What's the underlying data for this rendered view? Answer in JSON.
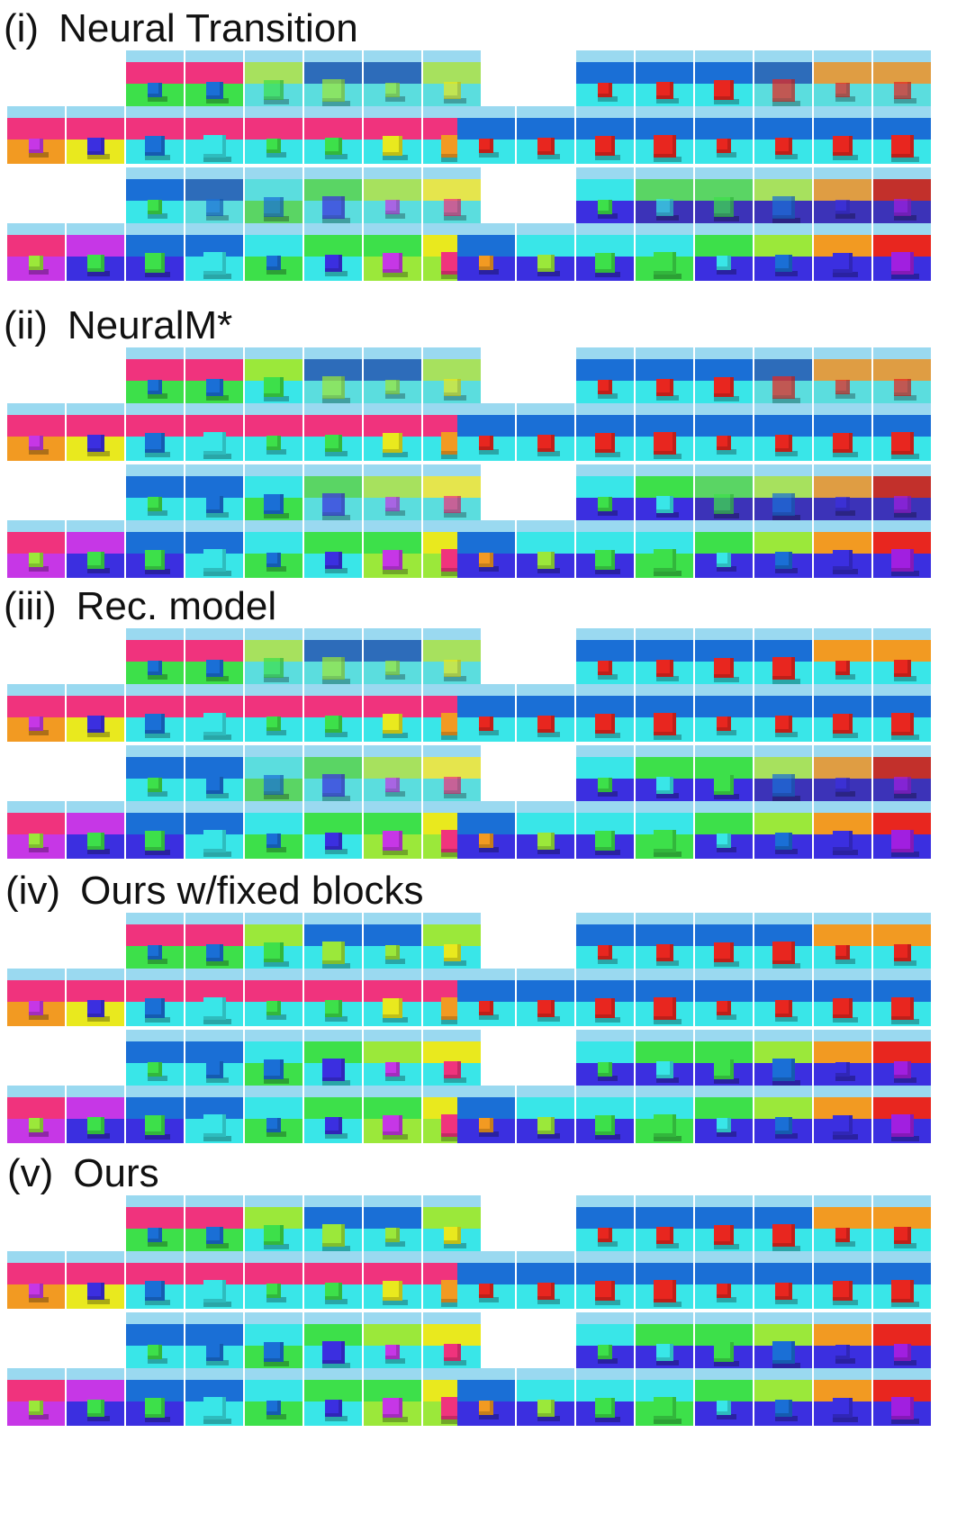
{
  "sections": [
    {
      "roman": "(i)",
      "title": "Neural Transition"
    },
    {
      "roman": "(ii)",
      "title": "NeuralM*"
    },
    {
      "roman": "(iii)",
      "title": "Rec. model"
    },
    {
      "roman": "(iv)",
      "title": "Ours w/fixed blocks"
    },
    {
      "roman": "(v)",
      "title": "Ours"
    }
  ],
  "colors": {
    "sky": "#9ad9f0",
    "pink": "#f0337d",
    "magenta": "#c637e6",
    "green": "#3de04a",
    "lime": "#9be83a",
    "cyan": "#39e6e8",
    "blue": "#1a6fd6",
    "royal": "#3b2fe0",
    "orange": "#f29a22",
    "red": "#e8261f",
    "yellow": "#e9e91e",
    "purple": "#a11fe0"
  }
}
